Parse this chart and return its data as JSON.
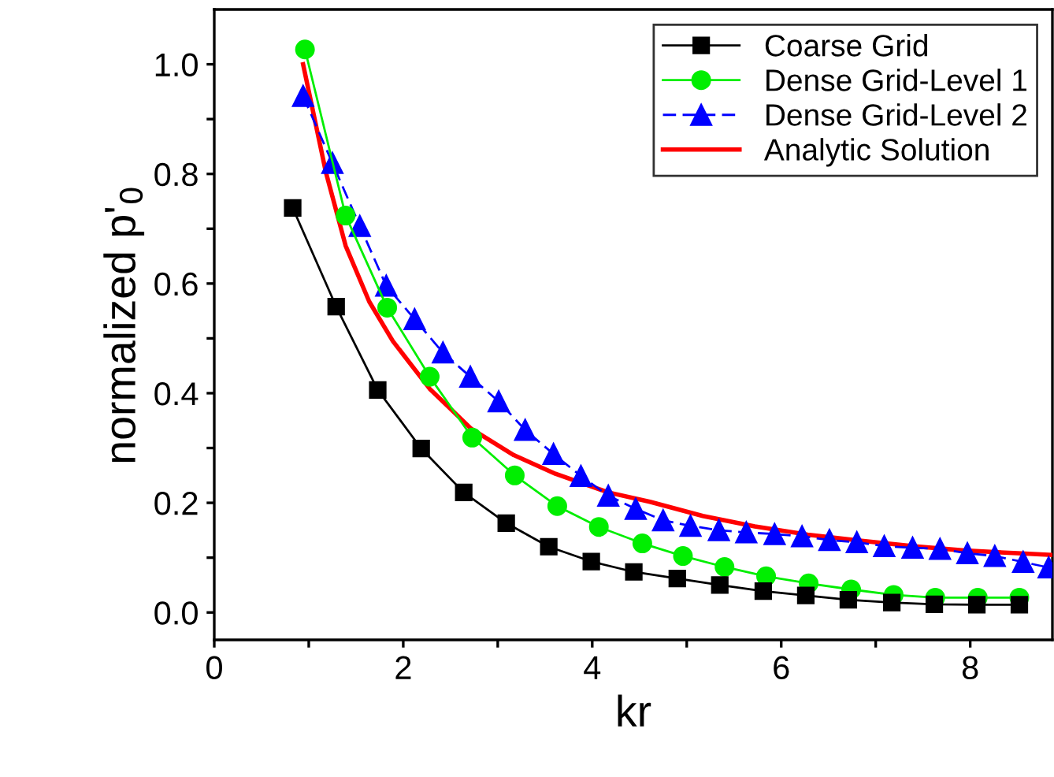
{
  "chart_data": {
    "type": "line",
    "xlabel": "kr",
    "ylabel": "normalized p'$_{0}$",
    "xlim": [
      0,
      8.87
    ],
    "ylim": [
      -0.05,
      1.1
    ],
    "xticks": [
      0,
      {
        "value": 1,
        "label": null
      },
      2,
      {
        "value": 3,
        "label": null
      },
      4,
      {
        "value": 5,
        "label": null
      },
      6,
      {
        "value": 7,
        "label": null
      },
      8
    ],
    "yticks": [
      {
        "value": 0,
        "label": "0.0"
      },
      {
        "value": 0.1,
        "label": null
      },
      {
        "value": 0.2,
        "label": "0.2"
      },
      {
        "value": 0.3,
        "label": null
      },
      {
        "value": 0.4,
        "label": "0.4"
      },
      {
        "value": 0.5,
        "label": null
      },
      {
        "value": 0.6,
        "label": "0.6"
      },
      {
        "value": 0.7,
        "label": null
      },
      {
        "value": 0.8,
        "label": "0.8"
      },
      {
        "value": 0.9,
        "label": null
      },
      {
        "value": 1.0,
        "label": "1.0"
      }
    ],
    "grid": false,
    "legend": "top right",
    "series": [
      {
        "name": "Coarse Grid",
        "color": "#000000",
        "marker": "square",
        "line_style": "solid",
        "x": [
          0.83,
          1.29,
          1.73,
          2.19,
          2.64,
          3.09,
          3.54,
          3.99,
          4.44,
          4.9,
          5.35,
          5.81,
          6.26,
          6.71,
          7.17,
          7.62,
          8.07,
          8.52
        ],
        "values": [
          0.738,
          0.558,
          0.406,
          0.299,
          0.219,
          0.163,
          0.12,
          0.093,
          0.074,
          0.062,
          0.05,
          0.039,
          0.031,
          0.023,
          0.018,
          0.015,
          0.014,
          0.014
        ]
      },
      {
        "name": "Dense Grid-Level 1",
        "color": "#00ee00",
        "marker": "circle",
        "line_style": "solid",
        "x": [
          0.96,
          1.39,
          1.83,
          2.28,
          2.73,
          3.18,
          3.63,
          4.07,
          4.53,
          4.96,
          5.4,
          5.84,
          6.29,
          6.74,
          7.19,
          7.63,
          8.08,
          8.52
        ],
        "values": [
          1.027,
          0.724,
          0.556,
          0.43,
          0.319,
          0.25,
          0.194,
          0.156,
          0.126,
          0.103,
          0.083,
          0.066,
          0.053,
          0.042,
          0.032,
          0.027,
          0.027,
          0.027
        ]
      },
      {
        "name": "Dense Grid-Level 2",
        "color": "#0000ff",
        "marker": "triangle",
        "line_style": "dashed",
        "x": [
          0.94,
          1.25,
          1.54,
          1.82,
          2.12,
          2.42,
          2.71,
          3.01,
          3.29,
          3.59,
          3.88,
          4.17,
          4.46,
          4.75,
          5.04,
          5.34,
          5.63,
          5.93,
          6.22,
          6.51,
          6.8,
          7.09,
          7.39,
          7.68,
          7.97,
          8.26,
          8.56,
          8.83
        ],
        "values": [
          0.942,
          0.82,
          0.705,
          0.596,
          0.535,
          0.474,
          0.43,
          0.385,
          0.333,
          0.289,
          0.249,
          0.213,
          0.189,
          0.168,
          0.158,
          0.15,
          0.146,
          0.143,
          0.139,
          0.132,
          0.128,
          0.121,
          0.118,
          0.116,
          0.108,
          0.103,
          0.092,
          0.082
        ]
      },
      {
        "name": "Analytic Solution",
        "color": "#ff0000",
        "marker": "none",
        "line_style": "solid",
        "x": [
          0.94,
          1.18,
          1.39,
          1.64,
          1.89,
          2.28,
          2.72,
          3.17,
          3.61,
          4.17,
          4.61,
          5.17,
          5.72,
          6.28,
          6.83,
          7.39,
          7.94,
          8.5,
          8.87
        ],
        "values": [
          1.0,
          0.804,
          0.669,
          0.567,
          0.495,
          0.408,
          0.335,
          0.287,
          0.253,
          0.219,
          0.202,
          0.176,
          0.157,
          0.142,
          0.131,
          0.121,
          0.113,
          0.108,
          0.105
        ]
      }
    ]
  }
}
